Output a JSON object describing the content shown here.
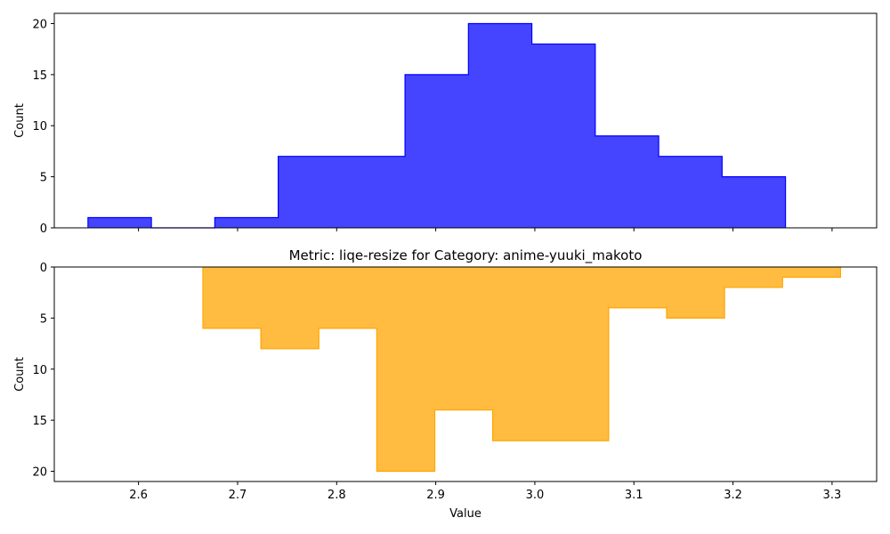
{
  "chart_data": [
    {
      "type": "histogram",
      "title": "",
      "xlabel": "",
      "ylabel": "Count",
      "xlim": [
        2.515,
        3.345
      ],
      "ylim": [
        0,
        21
      ],
      "y_inverted": false,
      "show_x_tick_labels": false,
      "x_ticks": [
        2.6,
        2.7,
        2.8,
        2.9,
        3.0,
        3.1,
        3.2,
        3.3
      ],
      "y_ticks": [
        0,
        5,
        10,
        15,
        20
      ],
      "bin_edges": [
        2.549,
        2.613,
        2.677,
        2.741,
        2.805,
        2.869,
        2.933,
        2.997,
        3.061,
        3.125,
        3.189,
        3.253
      ],
      "counts": [
        1,
        0,
        1,
        7,
        7,
        15,
        20,
        18,
        9,
        7,
        5
      ],
      "color": "#0000ff",
      "fill_opacity": 0.73
    },
    {
      "type": "histogram",
      "title": "Metric: liqe-resize for Category: anime-yuuki_makoto",
      "xlabel": "Value",
      "ylabel": "Count",
      "xlim": [
        2.515,
        3.345
      ],
      "ylim": [
        0,
        21
      ],
      "y_inverted": true,
      "show_x_tick_labels": true,
      "x_ticks": [
        2.6,
        2.7,
        2.8,
        2.9,
        3.0,
        3.1,
        3.2,
        3.3
      ],
      "y_ticks": [
        0,
        5,
        10,
        15,
        20
      ],
      "bin_edges": [
        2.665,
        2.7235,
        2.782,
        2.8405,
        2.899,
        2.9575,
        3.016,
        3.0745,
        3.133,
        3.1915,
        3.25,
        3.3085
      ],
      "counts": [
        6,
        8,
        6,
        20,
        14,
        17,
        17,
        4,
        5,
        2,
        1
      ],
      "color": "#ffa500",
      "fill_opacity": 0.75
    }
  ]
}
